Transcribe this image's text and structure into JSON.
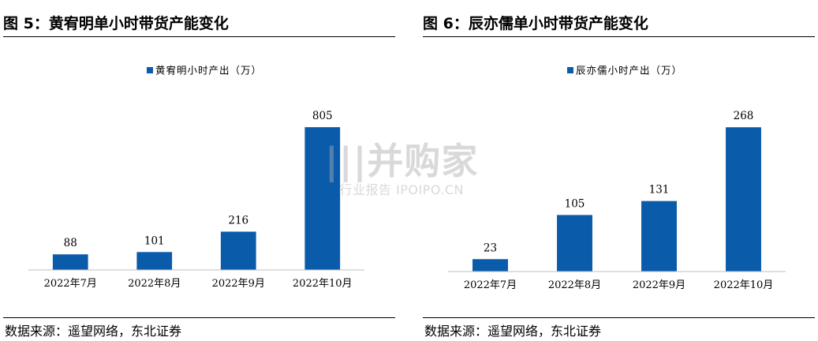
{
  "panels": [
    {
      "title": "图 5：黄宥明单小时带货产能变化",
      "source": "数据来源：遥望网络，东北证券",
      "chart_data": {
        "type": "bar",
        "categories": [
          "2022年7月",
          "2022年8月",
          "2022年9月",
          "2022年10月"
        ],
        "series": [
          {
            "name": "黄宥明小时产出（万）",
            "values": [
              88,
              101,
              216,
              805
            ]
          }
        ],
        "ylim": [
          0,
          850
        ],
        "grid": false,
        "legend_position": "top-center",
        "bar_color": "#0a5cab"
      }
    },
    {
      "title": "图 6：辰亦儒单小时带货产能变化",
      "source": "数据来源：遥望网络，东北证券",
      "chart_data": {
        "type": "bar",
        "categories": [
          "2022年7月",
          "2022年8月",
          "2022年9月",
          "2022年10月"
        ],
        "series": [
          {
            "name": "辰亦儒小时产出（万）",
            "values": [
              23,
              105,
              131,
              268
            ]
          }
        ],
        "ylim": [
          0,
          283
        ],
        "grid": false,
        "legend_position": "top-center",
        "bar_color": "#0a5cab"
      }
    }
  ],
  "watermark": {
    "brand": "|||并购家",
    "sub": "行业报告 IPOIPO.CN"
  }
}
